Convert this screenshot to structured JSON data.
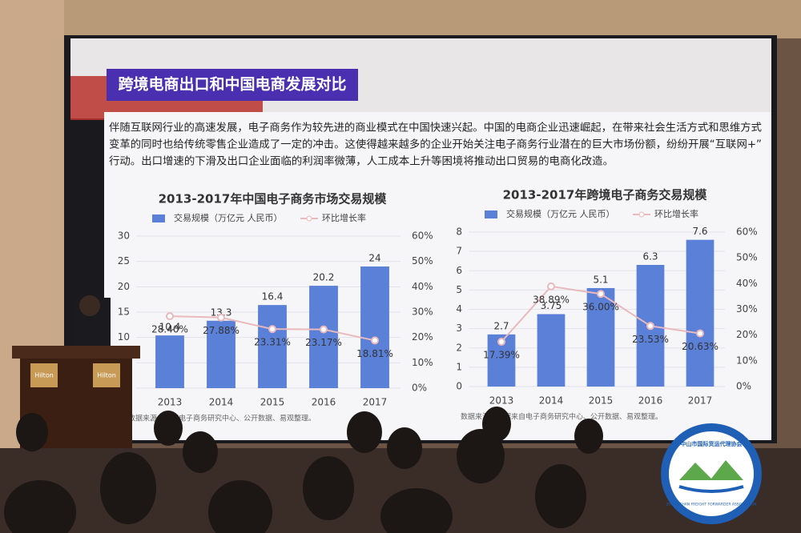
{
  "slide": {
    "title": "跨境电商出口和中国电商发展对比",
    "paragraph": [
      "伴随互联网行业的高速发展，电子商务作为较先进的商业模式在中国快速兴起。中国的电商企业迅速崛起，在带来社会生活方式和思维方式",
      "变革的同时也给传统零售企业造成了一定的冲击。这使得越来越多的企业开始关注电子商务行业潜在的巨大市场份额，纷纷开展“互联网+”",
      "行动。出口增速的下滑及出口企业面临的利润率微薄，人工成本上升等困境将推动出口贸易的电商化改造。"
    ]
  },
  "podium": {
    "labels": [
      "Hilton",
      "Hilton"
    ]
  },
  "logo": {
    "name": "中山市国际货运代理协会",
    "english": "ZHONGSHAN FREIGHT FORWARDER ASSOCIATION"
  },
  "chart_data": [
    {
      "type": "bar",
      "title": "2013-2017年中国电子商务市场交易规模",
      "categories": [
        "2013",
        "2014",
        "2015",
        "2016",
        "2017"
      ],
      "series": [
        {
          "name": "交易规模（万亿元 人民币）",
          "color": "#5b80d8",
          "values": [
            10.4,
            13.3,
            16.4,
            20.2,
            24
          ]
        },
        {
          "name": "环比增长率",
          "type": "line",
          "axis": "y2",
          "color": "#e9b9bd",
          "values": [
            28.4,
            27.88,
            23.31,
            23.17,
            18.81
          ],
          "value_labels": [
            "28.40%",
            "27.88%",
            "23.31%",
            "23.17%",
            "18.81%"
          ]
        }
      ],
      "ylim": [
        0,
        30
      ],
      "yticks": [
        0,
        5,
        10,
        15,
        20,
        25,
        30
      ],
      "y2lim": [
        0,
        60
      ],
      "y2ticks": [
        {
          "value": 0,
          "label": "0%"
        },
        {
          "value": 10,
          "label": "10%"
        },
        {
          "value": 20,
          "label": "20%"
        },
        {
          "value": 30,
          "label": "30%"
        },
        {
          "value": 40,
          "label": "40%"
        },
        {
          "value": 50,
          "label": "50%"
        },
        {
          "value": 60,
          "label": "60%"
        }
      ],
      "grid": true,
      "source": "数据来源：中国电子商务研究中心、公开数据、易观整理。"
    },
    {
      "type": "bar",
      "title": "2013-2017年跨境电子商务交易规模",
      "categories": [
        "2013",
        "2014",
        "2015",
        "2016",
        "2017"
      ],
      "series": [
        {
          "name": "交易规模（万亿元 人民币）",
          "color": "#5b80d8",
          "values": [
            2.7,
            3.75,
            5.1,
            6.3,
            7.6
          ]
        },
        {
          "name": "环比增长率",
          "type": "line",
          "axis": "y2",
          "color": "#e9b9bd",
          "values": [
            17.39,
            38.89,
            36.0,
            23.53,
            20.63
          ],
          "value_labels": [
            "17.39%",
            "38.89%",
            "36.00%",
            "23.53%",
            "20.63%"
          ]
        }
      ],
      "ylim": [
        0,
        8
      ],
      "yticks": [
        0,
        1,
        2,
        3,
        4,
        5,
        6,
        7,
        8
      ],
      "y2lim": [
        0,
        60
      ],
      "y2ticks": [
        {
          "value": 0,
          "label": "0%"
        },
        {
          "value": 10,
          "label": "10%"
        },
        {
          "value": 20,
          "label": "20%"
        },
        {
          "value": 30,
          "label": "30%"
        },
        {
          "value": 40,
          "label": "40%"
        },
        {
          "value": 50,
          "label": "50%"
        },
        {
          "value": 60,
          "label": "60%"
        }
      ],
      "grid": true,
      "source": "数据来源：数据来自电子商务研究中心、公开数据、易观整理。"
    }
  ]
}
